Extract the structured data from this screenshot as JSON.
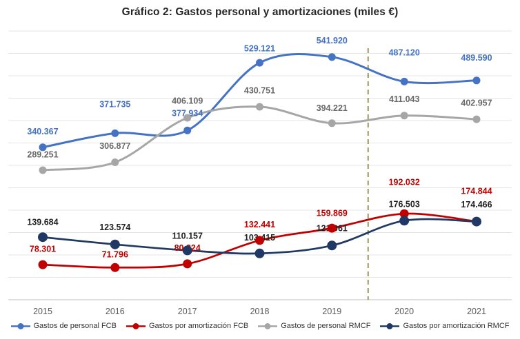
{
  "chart_data": {
    "type": "line",
    "title": "Gráfico 2: Gastos personal y amortizaciones (miles €)",
    "xlabel": "",
    "ylabel": "",
    "x_categories": [
      "2015",
      "2016",
      "2017",
      "2018",
      "2019",
      "2020",
      "2021"
    ],
    "ylim": [
      0,
      600
    ],
    "grid": true,
    "grid_step": 50,
    "y_axis_labels_visible": false,
    "legend_position": "bottom",
    "divider_line": {
      "between": [
        "2019",
        "2020"
      ],
      "style": "dashed",
      "color": "#847B2D"
    },
    "series": [
      {
        "name": "Gastos de personal FCB",
        "color": "#4472C4",
        "label_color": "#4472C4",
        "line_width": 3,
        "marker_radius": 5.5,
        "values": [
          340.367,
          371.735,
          377.934,
          529.121,
          541.92,
          487.12,
          489.59
        ],
        "labels": [
          "340.367",
          "371.735",
          "377.934",
          "529.121",
          "541.920",
          "487.120",
          "489.590"
        ],
        "label_dy": [
          -22,
          -41,
          -24,
          -20,
          -23,
          -41,
          -32
        ]
      },
      {
        "name": "Gastos por amortización FCB",
        "color": "#C00000",
        "label_color": "#C00000",
        "line_width": 2.75,
        "marker_radius": 6.5,
        "values": [
          78.301,
          71.796,
          80.224,
          132.441,
          159.869,
          192.032,
          174.844
        ],
        "labels": [
          "78.301",
          "71.796",
          "80.224",
          "132.441",
          "159.869",
          "192.032",
          "174.844"
        ],
        "label_dy": [
          -22,
          -18,
          -22,
          -22,
          -21,
          -45,
          -43
        ]
      },
      {
        "name": "Gastos de personal RMCF",
        "color": "#A6A6A6",
        "label_color": "#686868",
        "line_width": 3,
        "marker_radius": 5.5,
        "values": [
          289.251,
          306.877,
          406.109,
          430.751,
          394.221,
          411.043,
          402.957
        ],
        "labels": [
          "289.251",
          "306.877",
          "406.109",
          "430.751",
          "394.221",
          "411.043",
          "402.957"
        ],
        "label_dy": [
          -22,
          -23,
          -24,
          -23,
          -21,
          -23,
          -23
        ]
      },
      {
        "name": "Gastos por amortización RMCF",
        "color": "#203864",
        "label_color": "#1F1F1F",
        "line_width": 2.75,
        "marker_radius": 7,
        "values": [
          139.684,
          123.574,
          110.157,
          103.415,
          121.061,
          176.503,
          174.466
        ],
        "labels": [
          "139.684",
          "123.574",
          "110.157",
          "103.415",
          "121.061",
          "176.503",
          "174.466"
        ],
        "label_dy": [
          -21,
          -24,
          -20,
          -22,
          -24,
          -23,
          -24
        ]
      }
    ]
  }
}
